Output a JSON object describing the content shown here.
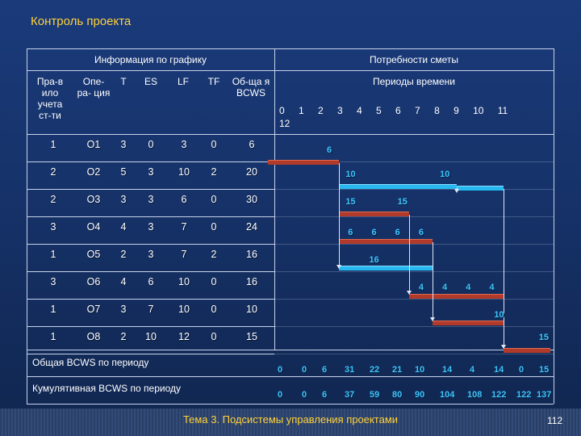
{
  "slide_title": "Контроль проекта",
  "header": {
    "schedule_info": "Информация по графику",
    "budget_needs": "Потребности сметы",
    "time_periods": "Периоды времени",
    "periods_line1": "0 1 2 3 4 5 6 7 8 9 10 11",
    "periods_line2": "12",
    "col_rules": "Пра-в ило учета ст-ти",
    "col_op": "Опе- ра- ция",
    "col_t": "T",
    "col_es": "ES",
    "col_lf": "LF",
    "col_tf": "TF",
    "col_bcws": "Об-ща я BCWS"
  },
  "rows": [
    {
      "rule": "1",
      "op": "O1",
      "t": "3",
      "es": "0",
      "lf": "3",
      "tf": "0",
      "bcws": "6"
    },
    {
      "rule": "2",
      "op": "O2",
      "t": "5",
      "es": "3",
      "lf": "10",
      "tf": "2",
      "bcws": "20"
    },
    {
      "rule": "2",
      "op": "O3",
      "t": "3",
      "es": "3",
      "lf": "6",
      "tf": "0",
      "bcws": "30"
    },
    {
      "rule": "3",
      "op": "O4",
      "t": "4",
      "es": "3",
      "lf": "7",
      "tf": "0",
      "bcws": "24"
    },
    {
      "rule": "1",
      "op": "O5",
      "t": "2",
      "es": "3",
      "lf": "7",
      "tf": "2",
      "bcws": "16"
    },
    {
      "rule": "3",
      "op": "O6",
      "t": "4",
      "es": "6",
      "lf": "10",
      "tf": "0",
      "bcws": "16"
    },
    {
      "rule": "1",
      "op": "O7",
      "t": "3",
      "es": "7",
      "lf": "10",
      "tf": "0",
      "bcws": "10"
    },
    {
      "rule": "1",
      "op": "O8",
      "t": "2",
      "es": "10",
      "lf": "12",
      "tf": "0",
      "bcws": "15"
    }
  ],
  "gantt_labels": {
    "o1": [
      "6"
    ],
    "o2": [
      "10",
      "10"
    ],
    "o3": [
      "15",
      "15"
    ],
    "o4": [
      "6",
      "6",
      "6",
      "6"
    ],
    "o5": [
      "16"
    ],
    "o6": [
      "4",
      "4",
      "4",
      "4"
    ],
    "o7": [
      "10"
    ],
    "o8": [
      "15"
    ]
  },
  "totals": {
    "period_label": "Общая  BCWS по периоду",
    "cumulative_label": "Кумулятивная  BCWS по периоду",
    "period_values": [
      "0",
      "0",
      "6",
      "31",
      "22",
      "21",
      "10",
      "14",
      "4",
      "14",
      "0",
      "15"
    ],
    "cumulative_values": [
      "0",
      "0",
      "6",
      "37",
      "59",
      "80",
      "90",
      "104",
      "108",
      "122",
      "122",
      "137"
    ]
  },
  "colors": {
    "title": "#ffd23a",
    "bar_red": "#b23a2a",
    "bar_cyan": "#28b8f0",
    "label": "#3fc4ff"
  },
  "footer": {
    "text": "Тема 3. Подсистемы управления проектами",
    "page": "112"
  }
}
